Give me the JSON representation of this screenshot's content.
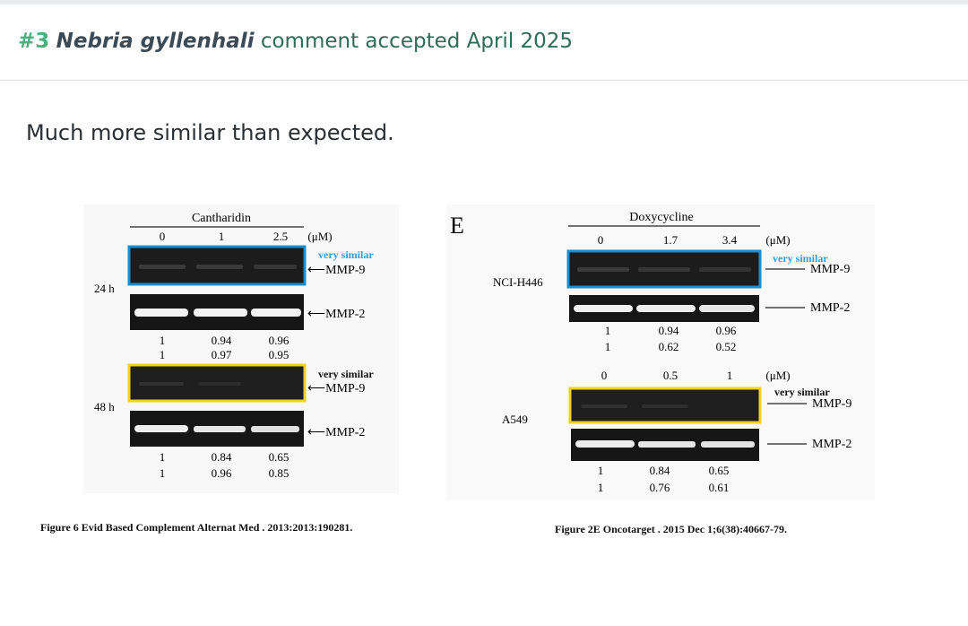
{
  "post": {
    "number": "#3",
    "species": "Nebria gyllenhali",
    "status_text": "comment accepted April 2025",
    "comment": "Much more similar than expected."
  },
  "colors": {
    "blue_box": "#1a8fd0",
    "yellow_box": "#f2d21b",
    "annotation_blue": "#2f9fe0"
  },
  "figure_left": {
    "treatment": "Cantharidin",
    "doses": [
      "0",
      "1",
      "2.5"
    ],
    "unit": "(μM)",
    "time_24": "24 h",
    "time_48": "48 h",
    "annotation": "very similar",
    "band_top": "MMP-9",
    "band_bottom": "MMP-2",
    "row24_a": [
      "1",
      "0.94",
      "0.96"
    ],
    "row24_b": [
      "1",
      "0.97",
      "0.95"
    ],
    "row48_a": [
      "1",
      "0.84",
      "0.65"
    ],
    "row48_b": [
      "1",
      "0.96",
      "0.85"
    ],
    "caption": "Figure 6 Evid Based Complement Alternat Med . 2013:2013:190281."
  },
  "figure_right": {
    "panel_letter": "E",
    "treatment": "Doxycycline",
    "doses_top": [
      "0",
      "1.7",
      "3.4"
    ],
    "unit": "(μM)",
    "cell1": "NCI-H446",
    "cell2": "A549",
    "doses_bottom": [
      "0",
      "0.5",
      "1"
    ],
    "annotation": "very similar",
    "band_top": "MMP-9",
    "band_bottom": "MMP-2",
    "rowA_a": [
      "1",
      "0.94",
      "0.96"
    ],
    "rowA_b": [
      "1",
      "0.62",
      "0.52"
    ],
    "rowB_a": [
      "1",
      "0.84",
      "0.65"
    ],
    "rowB_b": [
      "1",
      "0.76",
      "0.61"
    ],
    "caption": "Figure 2E Oncotarget . 2015 Dec 1;6(38):40667-79."
  }
}
